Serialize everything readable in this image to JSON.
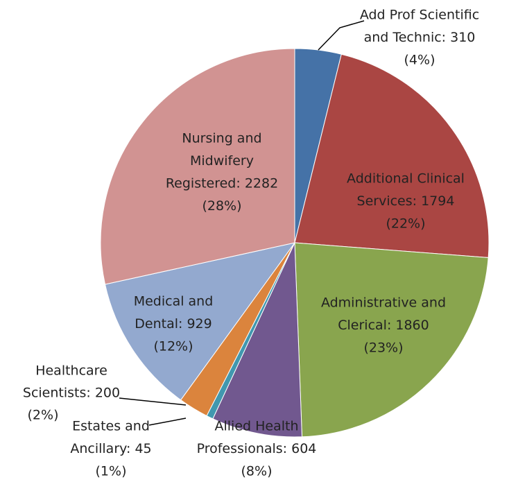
{
  "chart_data": {
    "type": "pie",
    "values": [
      310,
      1794,
      1860,
      604,
      45,
      200,
      929,
      2282
    ],
    "value_labels": [
      [
        "Add Prof Scientific",
        "and Technic: 310",
        "(4%)"
      ],
      [
        "Additional Clinical",
        "Services: 1794",
        "(22%)"
      ],
      [
        "Administrative and",
        "Clerical: 1860",
        "(23%)"
      ],
      [
        "Allied Health",
        "Professionals: 604",
        "(8%)"
      ],
      [
        "Estates and",
        "Ancillary: 45",
        "(1%)"
      ],
      [
        "Healthcare",
        "Scientists: 200",
        "(2%)"
      ],
      [
        "Medical and",
        "Dental: 929",
        "(12%)"
      ],
      [
        "Nursing and",
        "Midwifery",
        "Registered: 2282",
        "(28%)"
      ]
    ],
    "colors": [
      "#4572a7",
      "#aa4643",
      "#89a54e",
      "#71588f",
      "#4198af",
      "#db843d",
      "#93a9cf",
      "#d19392"
    ]
  }
}
